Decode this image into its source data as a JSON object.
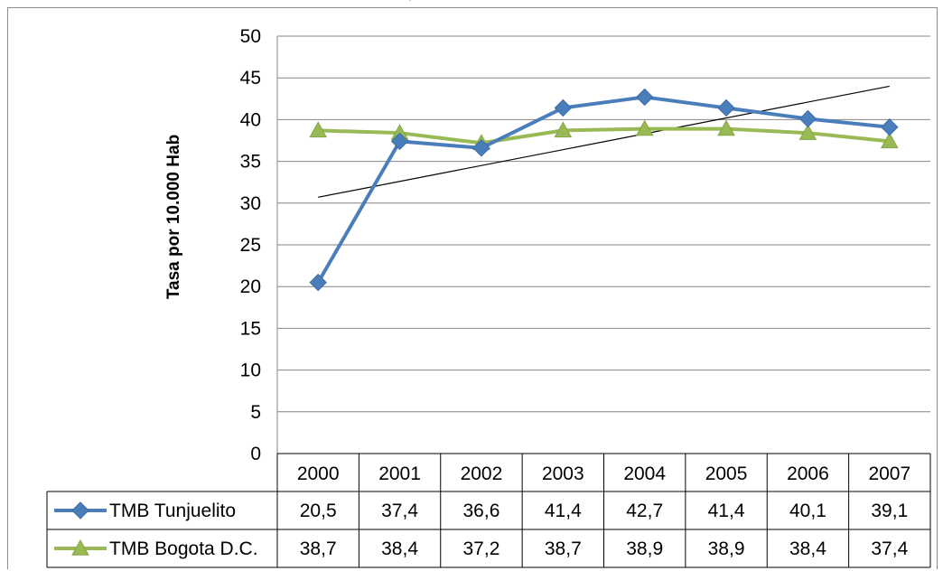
{
  "chart_data": {
    "type": "line",
    "title": "",
    "xlabel": "",
    "ylabel": "Tasa por 10.000 Hab",
    "categories": [
      "2000",
      "2001",
      "2002",
      "2003",
      "2004",
      "2005",
      "2006",
      "2007"
    ],
    "ylim": [
      0,
      50
    ],
    "yticks": [
      "0",
      "5",
      "10",
      "15",
      "20",
      "25",
      "30",
      "35",
      "40",
      "45",
      "50"
    ],
    "grid": true,
    "legend_placement": "data table below plot",
    "series": [
      {
        "name": "TMB Tunjuelito",
        "values": [
          20.5,
          37.4,
          36.6,
          41.4,
          42.7,
          41.4,
          40.1,
          39.1
        ],
        "labels": [
          "20,5",
          "37,4",
          "36,6",
          "41,4",
          "42,7",
          "41,4",
          "40,1",
          "39,1"
        ],
        "color": "#4a7ebb",
        "marker": "diamond"
      },
      {
        "name": "TMB Bogota D.C.",
        "values": [
          38.7,
          38.4,
          37.2,
          38.7,
          38.9,
          38.9,
          38.4,
          37.4
        ],
        "labels": [
          "38,7",
          "38,4",
          "37,2",
          "38,7",
          "38,9",
          "38,9",
          "38,4",
          "37,4"
        ],
        "color": "#98b954",
        "marker": "triangle"
      }
    ],
    "trendline": {
      "of_series": "TMB Tunjuelito",
      "type": "linear",
      "start_value": 30.7,
      "end_value": 44.0,
      "color": "#000000"
    }
  }
}
